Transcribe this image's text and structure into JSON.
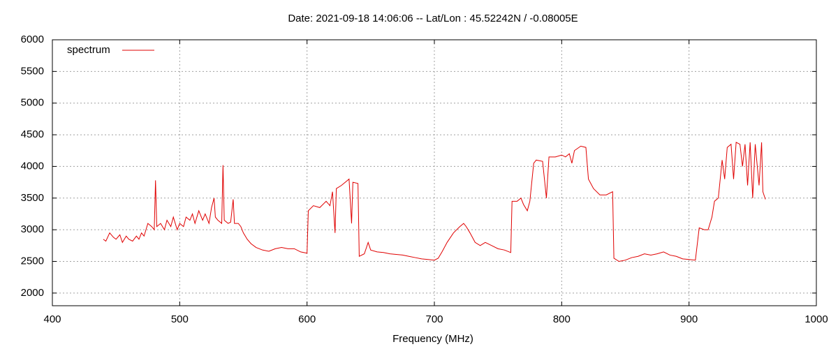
{
  "chart_data": {
    "type": "line",
    "title": "Date: 2021-09-18 14:06:06  --  Lat/Lon : 45.52242N / -0.08005E",
    "x_label": "Frequency (MHz)",
    "xlim": [
      400,
      1000
    ],
    "ylim": [
      1800,
      6000
    ],
    "xticks": [
      400,
      500,
      600,
      700,
      800,
      900,
      1000
    ],
    "yticks": [
      2000,
      2500,
      3000,
      3500,
      4000,
      4500,
      5000,
      5500,
      6000
    ],
    "grid": true,
    "legend": "top-left",
    "x": [
      440,
      442,
      445,
      448,
      450,
      453,
      455,
      458,
      460,
      463,
      466,
      468,
      470,
      472,
      475,
      478,
      480,
      481,
      482,
      485,
      488,
      490,
      493,
      495,
      498,
      500,
      503,
      505,
      508,
      510,
      512,
      515,
      518,
      520,
      523,
      525,
      527,
      528,
      530,
      533,
      534,
      535,
      538,
      540,
      542,
      543,
      546,
      548,
      550,
      553,
      556,
      560,
      565,
      570,
      575,
      580,
      585,
      590,
      595,
      600,
      601,
      605,
      610,
      615,
      618,
      620,
      622,
      623,
      627,
      630,
      633,
      635,
      636,
      640,
      641,
      645,
      648,
      650,
      655,
      660,
      665,
      670,
      675,
      680,
      685,
      690,
      695,
      700,
      703,
      706,
      710,
      715,
      720,
      723,
      725,
      728,
      732,
      736,
      740,
      745,
      750,
      755,
      760,
      761,
      765,
      768,
      770,
      773,
      775,
      778,
      780,
      785,
      788,
      790,
      795,
      800,
      803,
      806,
      808,
      810,
      815,
      819,
      821,
      825,
      830,
      835,
      840,
      841,
      845,
      850,
      855,
      860,
      865,
      870,
      875,
      880,
      885,
      890,
      895,
      900,
      905,
      908,
      912,
      915,
      918,
      920,
      923,
      926,
      928,
      930,
      933,
      935,
      937,
      940,
      942,
      944,
      946,
      948,
      950,
      952,
      955,
      957,
      958,
      960
    ],
    "series": [
      {
        "name": "spectrum",
        "color": "#e00000",
        "values": [
          2850,
          2820,
          2950,
          2880,
          2850,
          2920,
          2800,
          2900,
          2850,
          2820,
          2900,
          2850,
          2950,
          2900,
          3100,
          3050,
          3000,
          3780,
          3050,
          3100,
          3000,
          3150,
          3050,
          3200,
          3000,
          3100,
          3050,
          3200,
          3150,
          3250,
          3100,
          3300,
          3150,
          3250,
          3100,
          3350,
          3500,
          3200,
          3150,
          3100,
          4020,
          3150,
          3100,
          3120,
          3480,
          3100,
          3100,
          3050,
          2950,
          2850,
          2780,
          2720,
          2680,
          2660,
          2700,
          2720,
          2700,
          2700,
          2650,
          2630,
          3300,
          3380,
          3350,
          3450,
          3380,
          3600,
          2950,
          3650,
          3700,
          3750,
          3800,
          3100,
          3750,
          3730,
          2580,
          2620,
          2800,
          2680,
          2650,
          2640,
          2620,
          2610,
          2600,
          2580,
          2560,
          2540,
          2530,
          2520,
          2550,
          2650,
          2800,
          2950,
          3050,
          3100,
          3050,
          2950,
          2800,
          2750,
          2800,
          2750,
          2700,
          2680,
          2640,
          3450,
          3450,
          3500,
          3400,
          3300,
          3450,
          4050,
          4100,
          4080,
          3500,
          4150,
          4150,
          4180,
          4150,
          4200,
          4050,
          4250,
          4320,
          4300,
          3800,
          3650,
          3550,
          3550,
          3600,
          2550,
          2500,
          2520,
          2560,
          2580,
          2620,
          2600,
          2620,
          2650,
          2600,
          2580,
          2540,
          2530,
          2520,
          3030,
          3000,
          3000,
          3200,
          3450,
          3500,
          4100,
          3800,
          4300,
          4350,
          3800,
          4380,
          4350,
          4000,
          4350,
          3700,
          4380,
          3500,
          4350,
          3700,
          4380,
          3600,
          3480
        ]
      }
    ]
  }
}
